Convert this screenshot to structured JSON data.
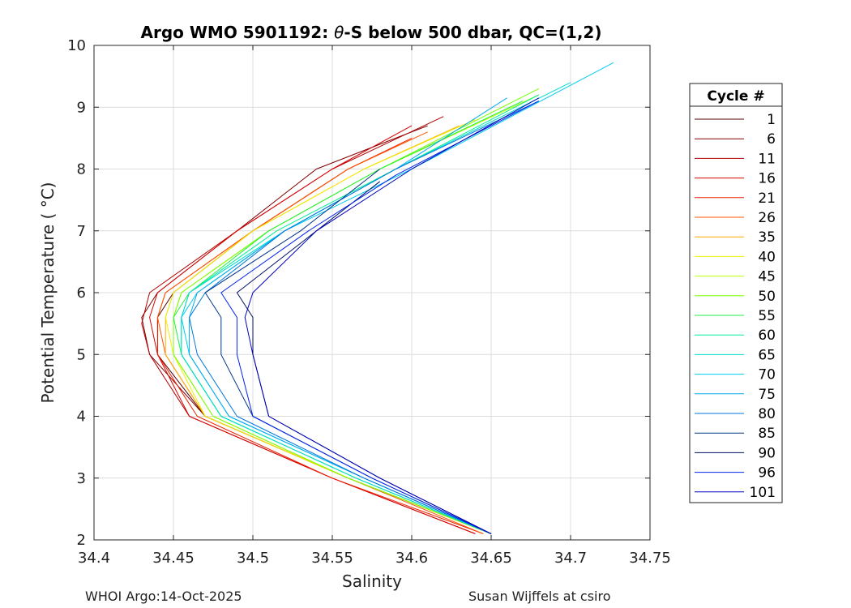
{
  "chart_data": {
    "type": "line",
    "title_prefix": "Argo WMO 5901192: ",
    "title_theta": "θ",
    "title_suffix": "-S below 500 dbar,  QC=(1,2)",
    "xlabel": "Salinity",
    "ylabel": "Potential Temperature ( °C)",
    "xlim": [
      34.4,
      34.75
    ],
    "ylim": [
      2,
      10
    ],
    "xticks": [
      "34.4",
      "34.45",
      "34.5",
      "34.55",
      "34.6",
      "34.65",
      "34.7",
      "34.75"
    ],
    "yticks": [
      "2",
      "3",
      "4",
      "5",
      "6",
      "7",
      "8",
      "9",
      "10"
    ],
    "grid": true,
    "legend_title": "Cycle #",
    "legend_position": "outside-right",
    "series": [
      {
        "name": "1",
        "color": "#550000",
        "points": [
          [
            34.65,
            2.1
          ],
          [
            34.56,
            3.0
          ],
          [
            34.47,
            4.0
          ],
          [
            34.44,
            5.0
          ],
          [
            34.44,
            5.6
          ],
          [
            34.45,
            6.0
          ],
          [
            34.5,
            7.0
          ],
          [
            34.56,
            8.0
          ]
        ]
      },
      {
        "name": "6",
        "color": "#800000",
        "points": [
          [
            34.65,
            2.1
          ],
          [
            34.56,
            3.0
          ],
          [
            34.47,
            4.0
          ],
          [
            34.435,
            5.0
          ],
          [
            34.43,
            5.6
          ],
          [
            34.44,
            6.0
          ],
          [
            34.49,
            7.0
          ],
          [
            34.54,
            8.0
          ],
          [
            34.61,
            8.7
          ]
        ]
      },
      {
        "name": "11",
        "color": "#b00000",
        "points": [
          [
            34.64,
            2.1
          ],
          [
            34.55,
            3.0
          ],
          [
            34.46,
            4.0
          ],
          [
            34.435,
            5.0
          ],
          [
            34.43,
            5.5
          ],
          [
            34.435,
            6.0
          ],
          [
            34.49,
            7.0
          ],
          [
            34.55,
            8.0
          ],
          [
            34.62,
            8.85
          ]
        ]
      },
      {
        "name": "16",
        "color": "#d80000",
        "points": [
          [
            34.64,
            2.1
          ],
          [
            34.55,
            3.0
          ],
          [
            34.46,
            4.0
          ],
          [
            34.44,
            5.0
          ],
          [
            34.435,
            5.6
          ],
          [
            34.44,
            6.0
          ],
          [
            34.49,
            7.0
          ],
          [
            34.55,
            8.0
          ],
          [
            34.6,
            8.7
          ]
        ]
      },
      {
        "name": "21",
        "color": "#ee2200",
        "points": [
          [
            34.645,
            2.1
          ],
          [
            34.55,
            3.0
          ],
          [
            34.465,
            4.0
          ],
          [
            34.44,
            5.0
          ],
          [
            34.44,
            5.6
          ],
          [
            34.445,
            6.0
          ],
          [
            34.5,
            7.0
          ],
          [
            34.56,
            8.0
          ],
          [
            34.6,
            8.5
          ]
        ]
      },
      {
        "name": "26",
        "color": "#ff5500",
        "points": [
          [
            34.645,
            2.1
          ],
          [
            34.56,
            3.0
          ],
          [
            34.47,
            4.0
          ],
          [
            34.445,
            5.0
          ],
          [
            34.44,
            5.6
          ],
          [
            34.445,
            6.0
          ],
          [
            34.5,
            7.0
          ],
          [
            34.56,
            8.0
          ],
          [
            34.61,
            8.6
          ]
        ]
      },
      {
        "name": "35",
        "color": "#ffaa00",
        "points": [
          [
            34.65,
            2.1
          ],
          [
            34.56,
            3.0
          ],
          [
            34.47,
            4.0
          ],
          [
            34.445,
            5.0
          ],
          [
            34.445,
            5.6
          ],
          [
            34.45,
            6.0
          ],
          [
            34.5,
            7.0
          ],
          [
            34.57,
            8.0
          ],
          [
            34.63,
            8.7
          ]
        ]
      },
      {
        "name": "40",
        "color": "#eeee00",
        "points": [
          [
            34.65,
            2.1
          ],
          [
            34.56,
            3.0
          ],
          [
            34.47,
            4.0
          ],
          [
            34.45,
            5.0
          ],
          [
            34.445,
            5.6
          ],
          [
            34.45,
            6.0
          ],
          [
            34.5,
            7.0
          ],
          [
            34.57,
            8.0
          ],
          [
            34.64,
            8.8
          ]
        ]
      },
      {
        "name": "45",
        "color": "#bbff00",
        "points": [
          [
            34.65,
            2.1
          ],
          [
            34.56,
            3.0
          ],
          [
            34.475,
            4.0
          ],
          [
            34.45,
            5.0
          ],
          [
            34.45,
            5.6
          ],
          [
            34.455,
            6.0
          ],
          [
            34.51,
            7.0
          ],
          [
            34.58,
            8.0
          ],
          [
            34.68,
            9.2
          ]
        ]
      },
      {
        "name": "50",
        "color": "#77ff00",
        "points": [
          [
            34.65,
            2.1
          ],
          [
            34.56,
            3.0
          ],
          [
            34.475,
            4.0
          ],
          [
            34.45,
            5.0
          ],
          [
            34.45,
            5.6
          ],
          [
            34.455,
            6.0
          ],
          [
            34.51,
            7.0
          ],
          [
            34.58,
            8.0
          ],
          [
            34.68,
            9.3
          ]
        ]
      },
      {
        "name": "55",
        "color": "#22ee44",
        "points": [
          [
            34.65,
            2.1
          ],
          [
            34.565,
            3.0
          ],
          [
            34.48,
            4.0
          ],
          [
            34.455,
            5.0
          ],
          [
            34.45,
            5.6
          ],
          [
            34.46,
            6.0
          ],
          [
            34.51,
            7.0
          ],
          [
            34.58,
            8.0
          ],
          [
            34.67,
            9.1
          ]
        ]
      },
      {
        "name": "60",
        "color": "#00ee99",
        "points": [
          [
            34.65,
            2.1
          ],
          [
            34.565,
            3.0
          ],
          [
            34.48,
            4.0
          ],
          [
            34.455,
            5.0
          ],
          [
            34.455,
            5.6
          ],
          [
            34.46,
            6.0
          ],
          [
            34.515,
            7.0
          ],
          [
            34.59,
            8.0
          ],
          [
            34.68,
            9.2
          ]
        ]
      },
      {
        "name": "65",
        "color": "#00ddcc",
        "points": [
          [
            34.65,
            2.1
          ],
          [
            34.565,
            3.0
          ],
          [
            34.48,
            4.0
          ],
          [
            34.455,
            5.0
          ],
          [
            34.455,
            5.6
          ],
          [
            34.46,
            6.0
          ],
          [
            34.52,
            7.0
          ],
          [
            34.59,
            8.0
          ],
          [
            34.7,
            9.4
          ]
        ]
      },
      {
        "name": "70",
        "color": "#00ccee",
        "points": [
          [
            34.65,
            2.1
          ],
          [
            34.57,
            3.0
          ],
          [
            34.485,
            4.0
          ],
          [
            34.46,
            5.0
          ],
          [
            34.455,
            5.6
          ],
          [
            34.465,
            6.0
          ],
          [
            34.52,
            7.0
          ],
          [
            34.6,
            8.0
          ],
          [
            34.727,
            9.72
          ]
        ]
      },
      {
        "name": "75",
        "color": "#00aaee",
        "points": [
          [
            34.65,
            2.1
          ],
          [
            34.57,
            3.0
          ],
          [
            34.485,
            4.0
          ],
          [
            34.46,
            5.0
          ],
          [
            34.46,
            5.6
          ],
          [
            34.465,
            6.0
          ],
          [
            34.52,
            7.0
          ],
          [
            34.59,
            8.0
          ],
          [
            34.66,
            9.15
          ]
        ]
      },
      {
        "name": "80",
        "color": "#0077dd",
        "points": [
          [
            34.65,
            2.1
          ],
          [
            34.57,
            3.0
          ],
          [
            34.49,
            4.0
          ],
          [
            34.465,
            5.0
          ],
          [
            34.46,
            5.6
          ],
          [
            34.47,
            6.0
          ],
          [
            34.52,
            7.0
          ],
          [
            34.59,
            8.0
          ],
          [
            34.68,
            9.1
          ]
        ]
      },
      {
        "name": "85",
        "color": "#003388",
        "points": [
          [
            34.65,
            2.1
          ],
          [
            34.575,
            3.0
          ],
          [
            34.5,
            4.0
          ],
          [
            34.48,
            5.0
          ],
          [
            34.48,
            5.6
          ],
          [
            34.47,
            6.0
          ],
          [
            34.53,
            7.0
          ],
          [
            34.58,
            8.0
          ]
        ]
      },
      {
        "name": "90",
        "color": "#001166",
        "points": [
          [
            34.65,
            2.1
          ],
          [
            34.58,
            3.0
          ],
          [
            34.51,
            4.0
          ],
          [
            34.5,
            5.0
          ],
          [
            34.5,
            5.6
          ],
          [
            34.49,
            6.0
          ],
          [
            34.54,
            7.0
          ],
          [
            34.58,
            7.8
          ]
        ]
      },
      {
        "name": "96",
        "color": "#0022ee",
        "points": [
          [
            34.65,
            2.1
          ],
          [
            34.575,
            3.0
          ],
          [
            34.5,
            4.0
          ],
          [
            34.49,
            5.0
          ],
          [
            34.49,
            5.6
          ],
          [
            34.48,
            6.0
          ],
          [
            34.535,
            7.0
          ],
          [
            34.59,
            7.9
          ],
          [
            34.68,
            9.1
          ]
        ]
      },
      {
        "name": "101",
        "color": "#0000bb",
        "points": [
          [
            34.65,
            2.1
          ],
          [
            34.58,
            3.0
          ],
          [
            34.51,
            4.0
          ],
          [
            34.5,
            5.0
          ],
          [
            34.495,
            5.6
          ],
          [
            34.5,
            6.0
          ],
          [
            34.54,
            7.0
          ],
          [
            34.6,
            8.0
          ],
          [
            34.68,
            9.15
          ]
        ]
      }
    ]
  },
  "footer": {
    "left": "WHOI Argo:14-Oct-2025",
    "right": "Susan Wijffels at csiro"
  }
}
